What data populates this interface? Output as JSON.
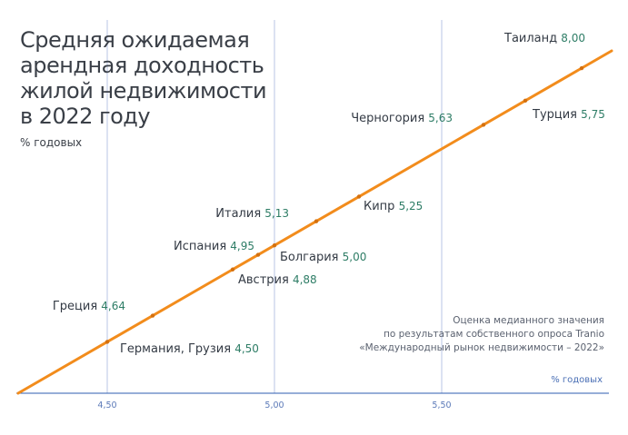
{
  "title_lines": [
    "Средняя ожидаемая",
    "арендная доходность",
    "жилой недвижимости",
    "в 2022 году"
  ],
  "unit_label": "% годовых",
  "note_lines": [
    "Оценка медианного значения",
    "по результатам собственного опроса Tranio",
    "«Международный рынок недвижимости – 2022»"
  ],
  "colors": {
    "line": "#f28c1c",
    "grid": "#b9c6e4",
    "axis": "#2e5db0",
    "value": "#2e7d66"
  },
  "chart_data": {
    "type": "scatter",
    "title": "Средняя ожидаемая арендная доходность жилой недвижимости в 2022 году",
    "xlabel": "% годовых",
    "ylabel": "",
    "xlim": [
      4.25,
      5.99
    ],
    "x_ticks": [
      4.5,
      5.0,
      5.5
    ],
    "x_tick_labels": [
      "4,50",
      "5,00",
      "5,50"
    ],
    "grid": "vertical",
    "points": [
      {
        "name": "Германия, Грузия",
        "value": 4.5,
        "label": "4,50"
      },
      {
        "name": "Греция",
        "value": 4.64,
        "label": "4,64"
      },
      {
        "name": "Австрия",
        "value": 4.88,
        "label": "4,88"
      },
      {
        "name": "Испания",
        "value": 4.95,
        "label": "4,95"
      },
      {
        "name": "Болгария",
        "value": 5.0,
        "label": "5,00"
      },
      {
        "name": "Италия",
        "value": 5.13,
        "label": "5,13"
      },
      {
        "name": "Кипр",
        "value": 5.25,
        "label": "5,25"
      },
      {
        "name": "Черногория",
        "value": 5.63,
        "label": "5,63"
      },
      {
        "name": "Турция",
        "value": 5.75,
        "label": "5,75"
      },
      {
        "name": "Таиланд",
        "value": 8.0,
        "label": "8,00"
      }
    ]
  }
}
